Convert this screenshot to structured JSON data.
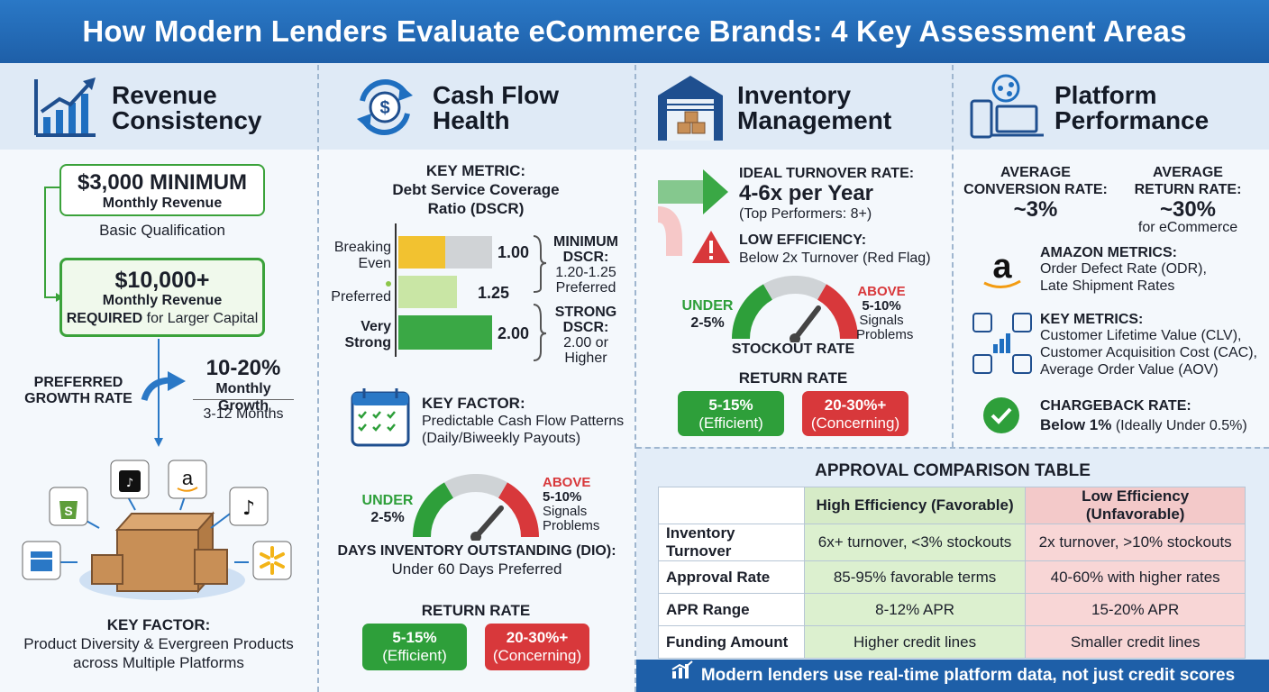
{
  "title": "How Modern Lenders Evaluate eCommerce Brands: 4 Key Assessment Areas",
  "col1": {
    "title_line1": "Revenue",
    "title_line2": "Consistency",
    "minimum_amount": "$3,000 MINIMUM",
    "minimum_label": "Monthly Revenue",
    "basic": "Basic Qualification",
    "required_amount": "$10,000+",
    "required_label": "Monthly Revenue",
    "required_word": "REQUIRED",
    "required_rest": "for Larger Capital",
    "growth_label_1": "PREFERRED",
    "growth_label_2": "GROWTH RATE",
    "growth_value": "10-20%",
    "growth_unit": "Monthly Growth",
    "growth_period": "3-12 Months",
    "key_factor_title": "KEY FACTOR:",
    "key_factor_1": "Product Diversity & Evergreen Products",
    "key_factor_2": "across Multiple Platforms"
  },
  "col2": {
    "title_line1": "Cash Flow",
    "title_line2": "Health",
    "metric_1": "KEY METRIC:",
    "metric_2": "Debt Service Coverage",
    "metric_3": "Ratio (DSCR)",
    "bars": [
      {
        "label_1": "Breaking",
        "label_2": "Even",
        "value": "1.00",
        "fill": 1.0
      },
      {
        "label_1": "Preferred",
        "label_2": "",
        "value": "1.25",
        "fill": 1.25
      },
      {
        "label_1": "Very",
        "label_2": "Strong",
        "value": "2.00",
        "fill": 2.0
      }
    ],
    "min_1": "MINIMUM",
    "min_2": "DSCR:",
    "min_3": "1.20-1.25",
    "min_4": "Preferred",
    "strong_1": "STRONG",
    "strong_2": "DSCR:",
    "strong_3": "2.00 or",
    "strong_4": "Higher",
    "factor_title": "KEY FACTOR:",
    "factor_1": "Predictable Cash Flow Patterns",
    "factor_2": "(Daily/Biweekly Payouts)",
    "gauge_under_1": "UNDER",
    "gauge_under_2": "2-5%",
    "gauge_above_1": "ABOVE",
    "gauge_above_2": "5-10%",
    "gauge_above_3": "Signals",
    "gauge_above_4": "Problems",
    "dio_title": "DAYS INVENTORY OUTSTANDING (DIO):",
    "dio_value": "Under 60 Days Preferred",
    "return_title": "RETURN RATE",
    "return_good_1": "5-15%",
    "return_good_2": "(Efficient)",
    "return_bad_1": "20-30%+",
    "return_bad_2": "(Concerning)"
  },
  "col3": {
    "title_line1": "Inventory",
    "title_line2": "Management",
    "ideal_title": "IDEAL TURNOVER RATE:",
    "ideal_value": "4-6x per Year",
    "ideal_note": "(Top Performers: 8+)",
    "low_title": "LOW EFFICIENCY:",
    "low_value": "Below 2x Turnover (Red Flag)",
    "gauge_under_1": "UNDER",
    "gauge_under_2": "2-5%",
    "gauge_above_1": "ABOVE",
    "gauge_above_2": "5-10%",
    "gauge_above_3": "Signals",
    "gauge_above_4": "Problems",
    "stockout": "STOCKOUT RATE",
    "return_title": "RETURN RATE",
    "return_good_1": "5-15%",
    "return_good_2": "(Efficient)",
    "return_bad_1": "20-30%+",
    "return_bad_2": "(Concerning)"
  },
  "col4": {
    "title_line1": "Platform",
    "title_line2": "Performance",
    "conv_1": "AVERAGE",
    "conv_2": "CONVERSION RATE:",
    "conv_value": "~3%",
    "ret_1": "AVERAGE",
    "ret_2": "RETURN RATE:",
    "ret_value": "~30%",
    "ret_note": "for eCommerce",
    "amazon_title": "AMAZON METRICS:",
    "amazon_1": "Order Defect Rate (ODR),",
    "amazon_2": "Late Shipment Rates",
    "key_title": "KEY METRICS:",
    "key_1": "Customer Lifetime Value (CLV),",
    "key_2": "Customer Acquisition Cost (CAC),",
    "key_3": "Average Order Value (AOV)",
    "cb_title": "CHARGEBACK RATE:",
    "cb_bold": "Below 1%",
    "cb_rest": "(Ideally Under 0.5%)"
  },
  "table": {
    "title": "APPROVAL COMPARISON TABLE",
    "headers": [
      "",
      "High Efficiency (Favorable)",
      "Low Efficiency (Unfavorable)"
    ],
    "rows": [
      [
        "Inventory Turnover",
        "6x+ turnover, <3% stockouts",
        "2x turnover, >10% stockouts"
      ],
      [
        "Approval Rate",
        "85-95% favorable terms",
        "40-60% with higher rates"
      ],
      [
        "APR Range",
        "8-12% APR",
        "15-20% APR"
      ],
      [
        "Funding Amount",
        "Higher credit lines",
        "Smaller credit lines"
      ]
    ]
  },
  "footer": "Modern lenders use real-time platform data, not just credit scores",
  "colors": {
    "header": "#1e5fa8",
    "green": "#2e9f3a",
    "red": "#d8383b",
    "yellow": "#f2c230",
    "light_green": "#c9e6a5",
    "table_green": "#dcf0cf",
    "table_red": "#f8d6d6"
  }
}
